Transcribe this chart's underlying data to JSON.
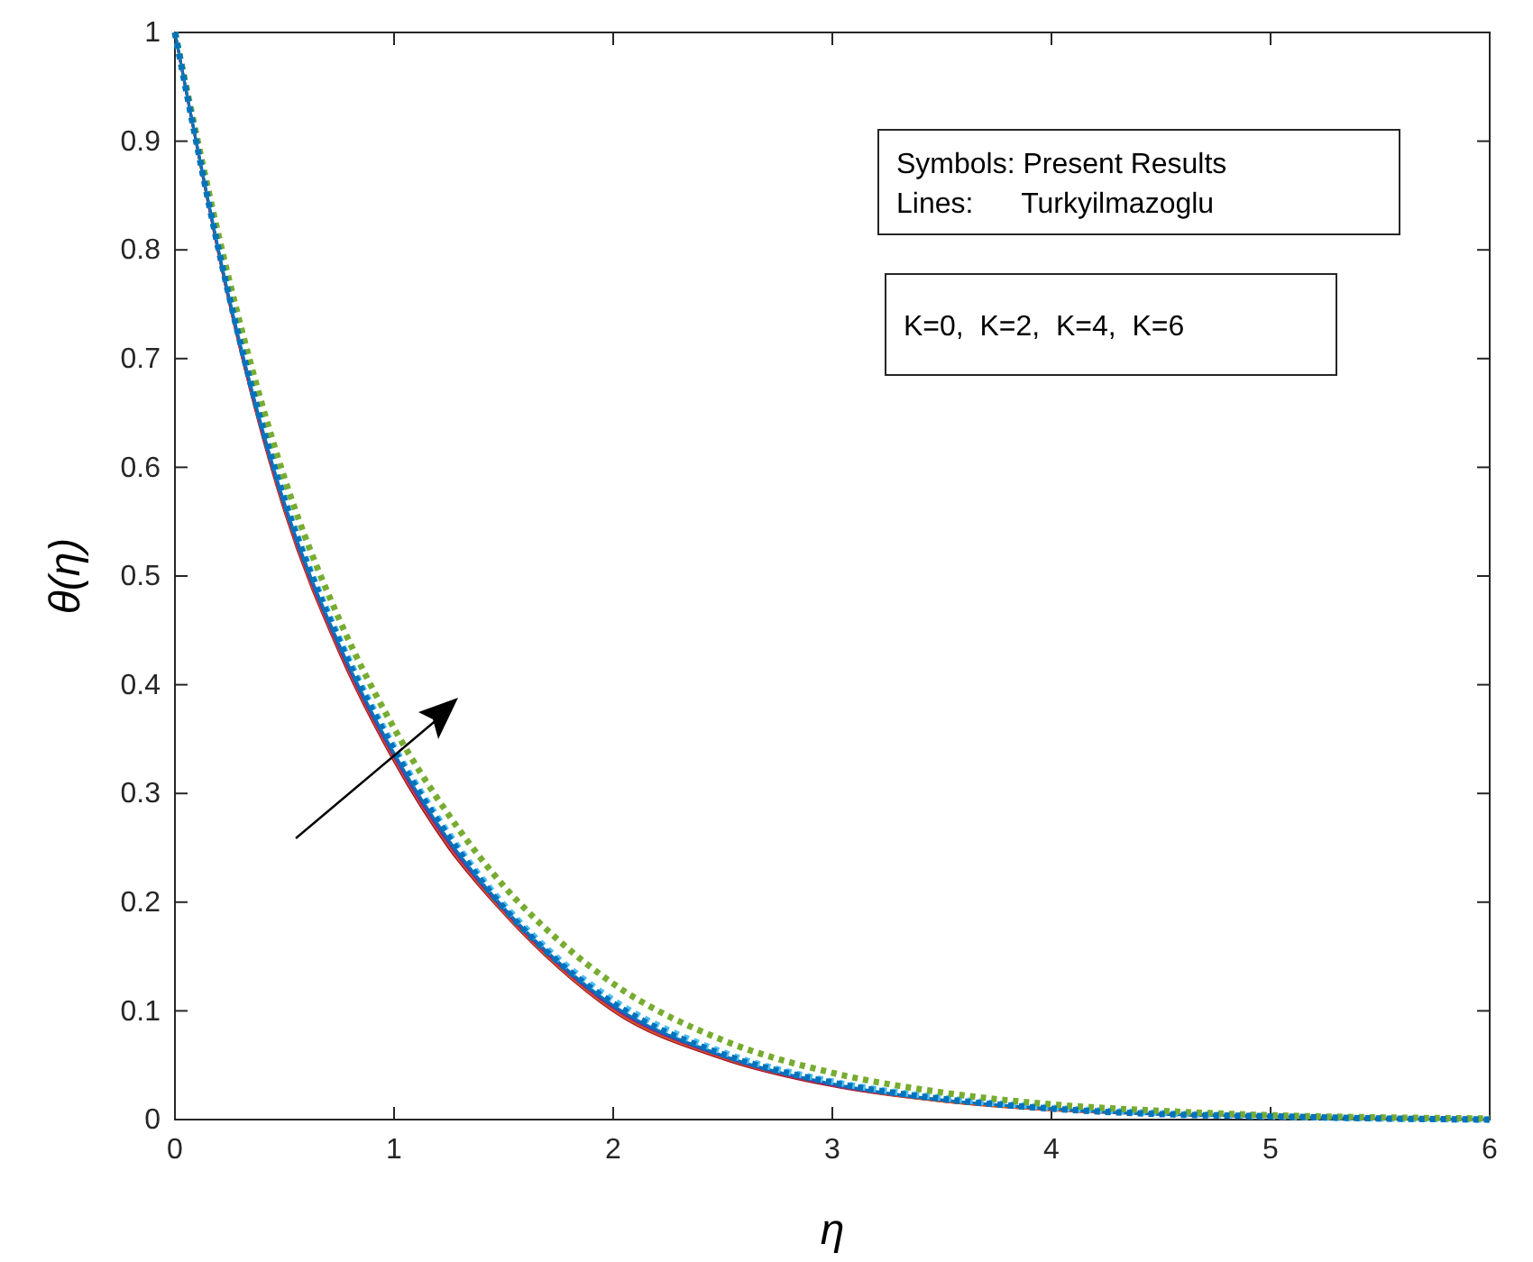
{
  "chart_data": {
    "type": "line",
    "xlabel": "η",
    "ylabel": "θ(η)",
    "x": [
      0,
      0.25,
      0.5,
      0.75,
      1,
      1.25,
      1.5,
      1.75,
      2,
      2.5,
      3,
      3.5,
      4,
      4.5,
      5,
      5.5,
      6
    ],
    "series": [
      {
        "color": "#a2142f",
        "line_style": "solid",
        "values": [
          1,
          0.75,
          0.56,
          0.43,
          0.33,
          0.25,
          0.19,
          0.14,
          0.1,
          0.056,
          0.031,
          0.017,
          0.009,
          0.005,
          0.003,
          null,
          null
        ]
      },
      {
        "color": "#d95319",
        "line_style": "solid",
        "values": [
          1,
          0.751,
          0.562,
          0.432,
          0.332,
          0.252,
          0.191,
          0.141,
          0.101,
          0.057,
          0.032,
          0.017,
          0.009,
          0.005,
          0.003,
          null,
          null
        ]
      },
      {
        "color": "#7e2f8e",
        "line_style": "solid",
        "values": [
          1,
          0.752,
          0.564,
          0.434,
          0.334,
          0.254,
          0.193,
          0.143,
          0.103,
          0.058,
          0.032,
          0.018,
          0.01,
          0.005,
          0.003,
          null,
          null
        ]
      },
      {
        "color": "#0072bd",
        "line_style": "solid",
        "values": [
          1,
          0.754,
          0.567,
          0.437,
          0.337,
          0.257,
          0.195,
          0.145,
          0.105,
          0.059,
          0.033,
          0.018,
          0.01,
          0.005,
          0.003,
          0.001,
          0
        ]
      },
      {
        "color": "#4dbeee",
        "line_style": "dotted",
        "values": [
          1,
          0.757,
          0.572,
          0.443,
          0.343,
          0.263,
          0.198,
          0.148,
          0.11,
          0.062,
          0.035,
          0.02,
          0.011,
          0.006,
          0.003,
          0.001,
          0
        ]
      },
      {
        "color": "#77ac30",
        "line_style": "dotted",
        "values": [
          1,
          0.77,
          0.59,
          0.46,
          0.36,
          0.28,
          0.215,
          0.165,
          0.125,
          0.073,
          0.043,
          0.025,
          0.014,
          0.008,
          0.004,
          0.002,
          0.001
        ]
      },
      {
        "color": "#0072bd",
        "line_style": "dotted",
        "values": [
          1,
          0.755,
          0.57,
          0.44,
          0.34,
          0.26,
          0.195,
          0.145,
          0.107,
          0.06,
          0.034,
          0.019,
          0.01,
          0.005,
          0.003,
          0.001,
          0
        ]
      }
    ],
    "xlim": [
      0,
      6
    ],
    "xticks": [
      0,
      1,
      2,
      3,
      4,
      5,
      6
    ],
    "ylim": [
      0,
      1
    ],
    "yticks": [
      0,
      0.1,
      0.2,
      0.3,
      0.4,
      0.5,
      0.6,
      0.7,
      0.8,
      0.9,
      1
    ],
    "annotations": [
      "Symbols: Present Results\nLines:      Turkyilmazoglu",
      "K=0,  K=2,  K=4,  K=6"
    ],
    "grid": false
  }
}
